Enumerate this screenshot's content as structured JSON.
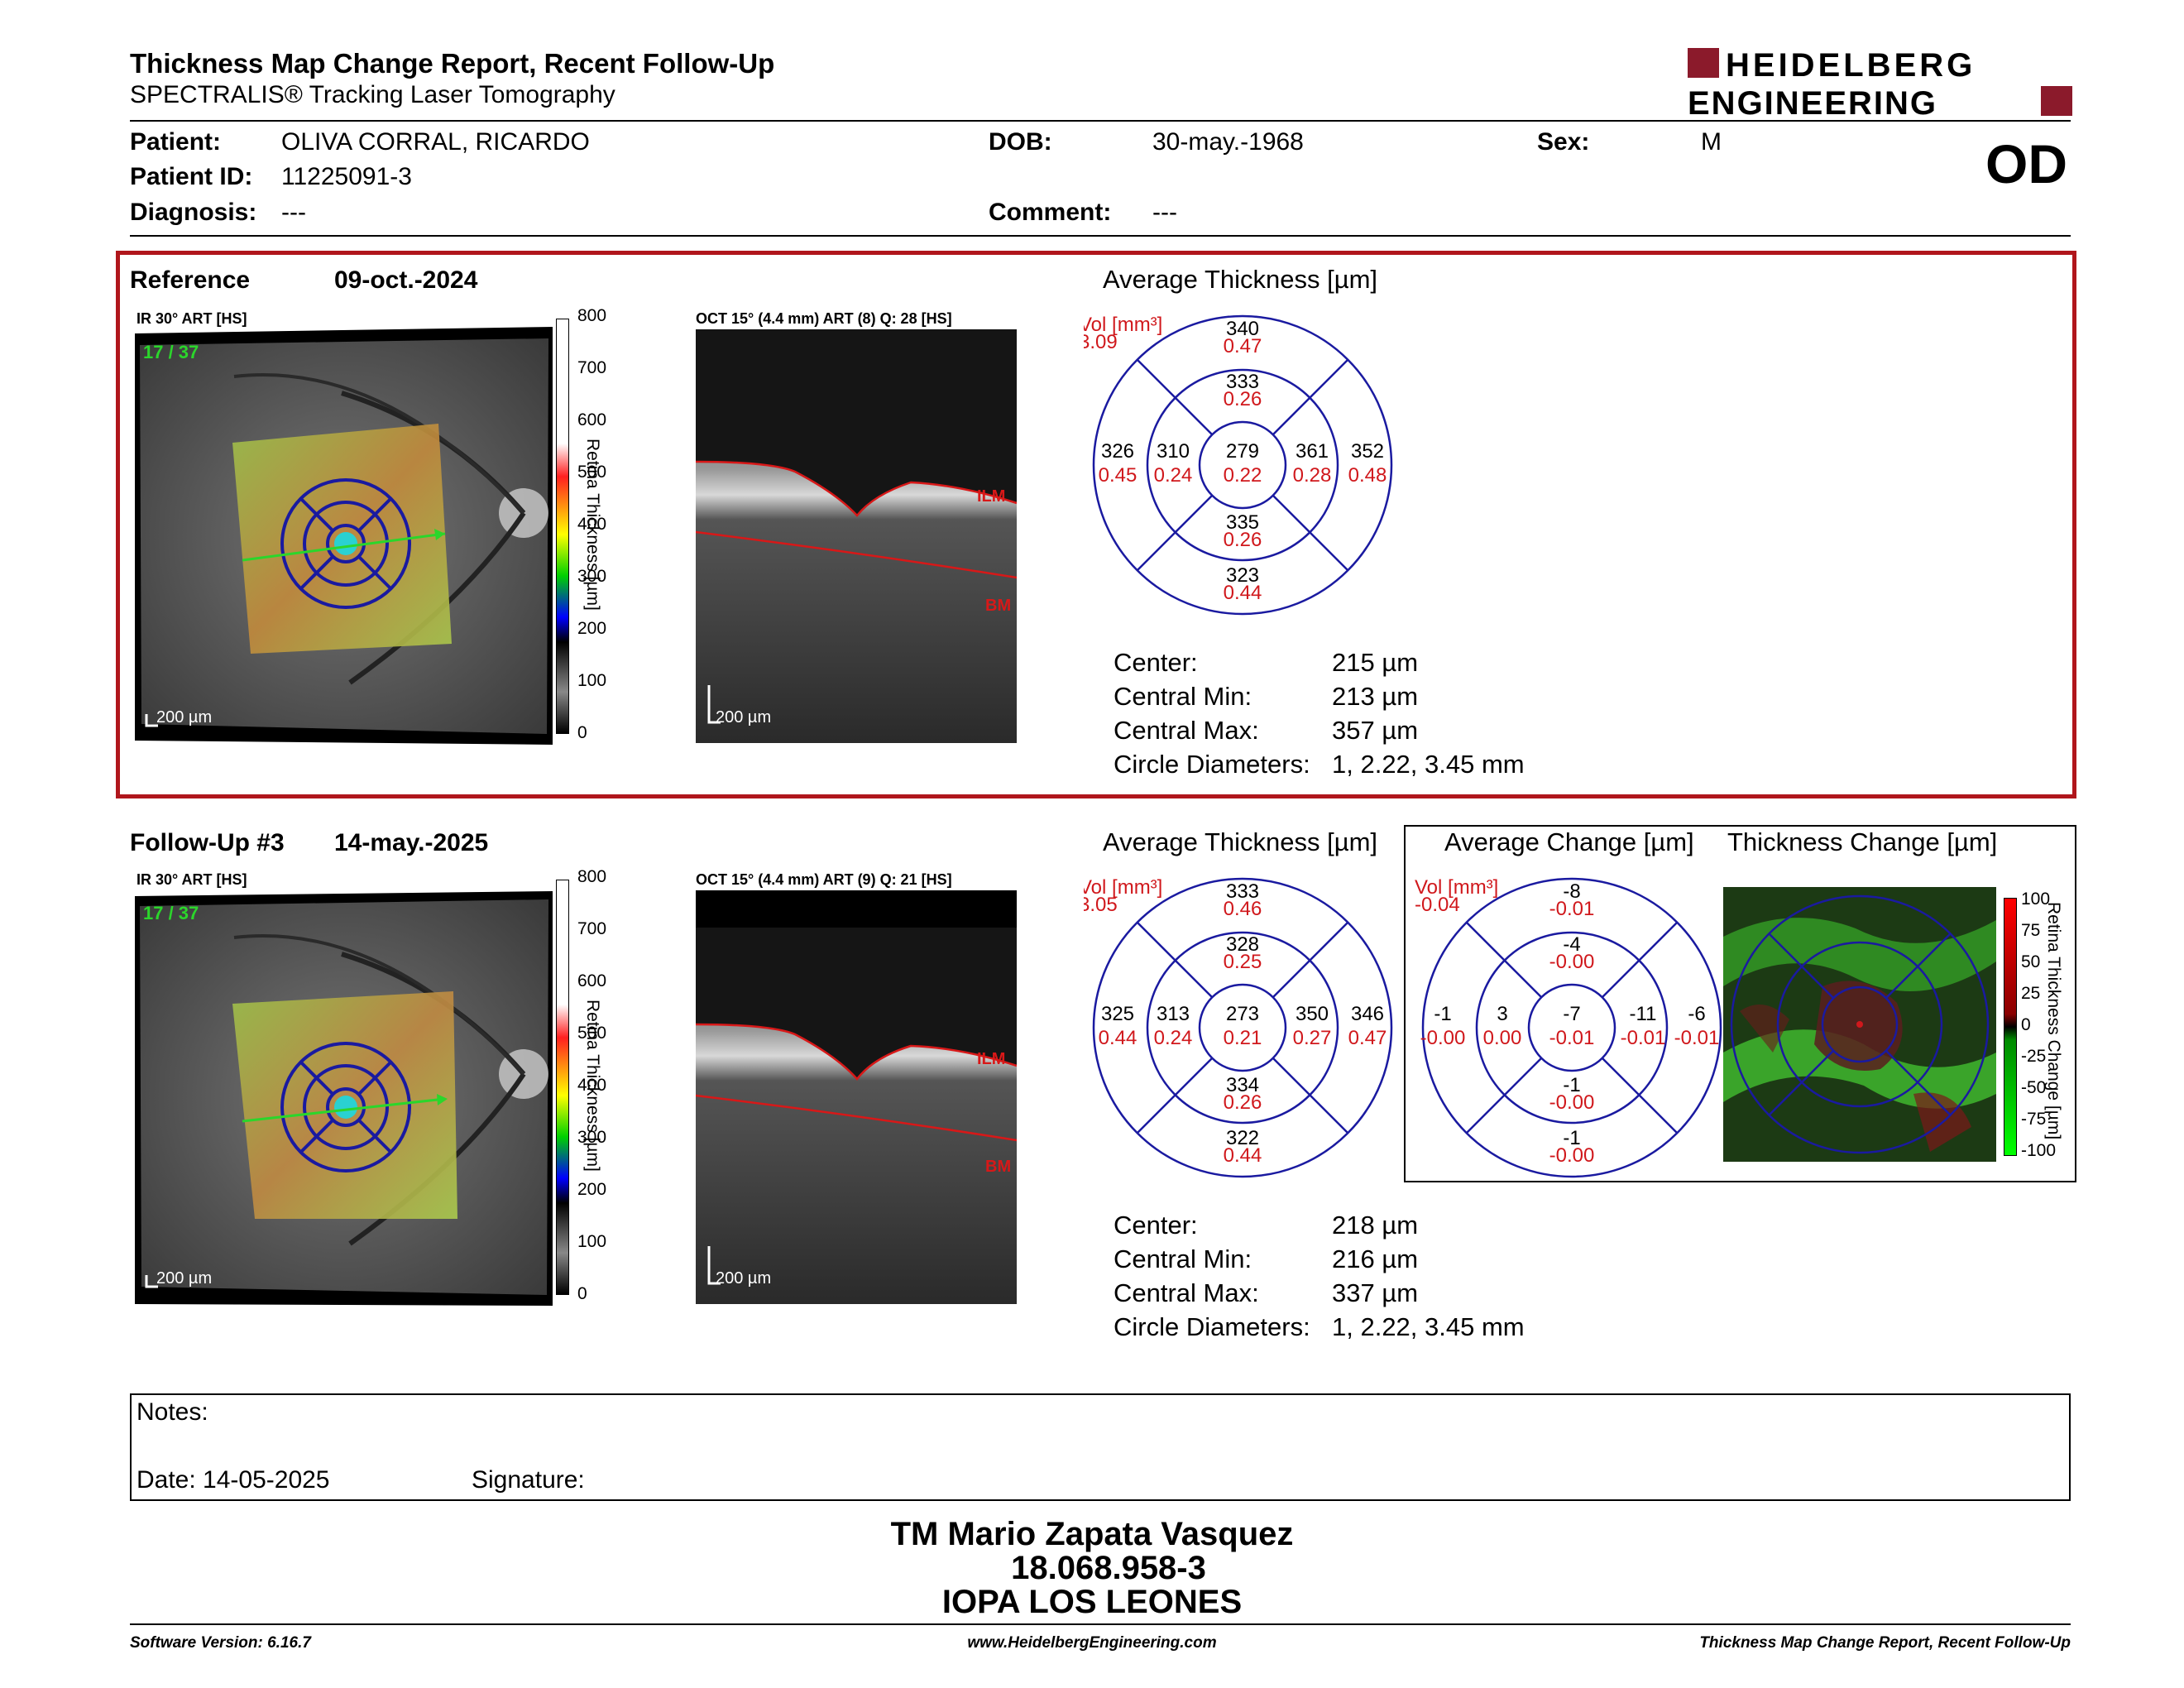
{
  "header": {
    "title": "Thickness Map Change Report, Recent Follow-Up",
    "subtitle": "SPECTRALIS® Tracking Laser Tomography",
    "logo_line1": "HEIDELBERG",
    "logo_line2": "ENGINEERING",
    "brand_color": "#8b1a2b"
  },
  "patient": {
    "patient_label": "Patient:",
    "patient_value": "OLIVA CORRAL, RICARDO",
    "id_label": "Patient ID:",
    "id_value": "11225091-3",
    "diagnosis_label": "Diagnosis:",
    "diagnosis_value": "---",
    "dob_label": "DOB:",
    "dob_value": "30-may.-1968",
    "comment_label": "Comment:",
    "comment_value": "---",
    "sex_label": "Sex:",
    "sex_value": "M",
    "eye": "OD"
  },
  "reference": {
    "label": "Reference",
    "date": "09-oct.-2024",
    "ir_title": "IR 30° ART [HS]",
    "ir_counter": "17 / 37",
    "oct_title": "OCT 15° (4.4 mm) ART (8) Q: 28 [HS]",
    "scale_label": "200 µm",
    "avg_title": "Average Thickness [µm]",
    "vol_label": "Vol [mm³]",
    "vol_value": "3.09",
    "grid": {
      "center": [
        "279",
        "0.22"
      ],
      "inner_top": [
        "333",
        "0.26"
      ],
      "inner_bottom": [
        "335",
        "0.26"
      ],
      "inner_left": [
        "310",
        "0.24"
      ],
      "inner_right": [
        "361",
        "0.28"
      ],
      "outer_top": [
        "340",
        "0.47"
      ],
      "outer_bottom": [
        "323",
        "0.44"
      ],
      "outer_left": [
        "326",
        "0.45"
      ],
      "outer_right": [
        "352",
        "0.48"
      ]
    },
    "stats": [
      {
        "label": "Center:",
        "value": "215 µm"
      },
      {
        "label": "Central Min:",
        "value": "213 µm"
      },
      {
        "label": "Central Max:",
        "value": "357 µm"
      },
      {
        "label": "Circle Diameters:",
        "value": "1, 2.22, 3.45 mm"
      }
    ]
  },
  "followup": {
    "label": "Follow-Up #3",
    "date": "14-may.-2025",
    "ir_title": "IR 30° ART [HS]",
    "ir_counter": "17 / 37",
    "oct_title": "OCT 15° (4.4 mm) ART (9) Q: 21 [HS]",
    "scale_label": "200 µm",
    "avg_title": "Average Thickness [µm]",
    "vol_label": "Vol [mm³]",
    "vol_value": "3.05",
    "grid": {
      "center": [
        "273",
        "0.21"
      ],
      "inner_top": [
        "328",
        "0.25"
      ],
      "inner_bottom": [
        "334",
        "0.26"
      ],
      "inner_left": [
        "313",
        "0.24"
      ],
      "inner_right": [
        "350",
        "0.27"
      ],
      "outer_top": [
        "333",
        "0.46"
      ],
      "outer_bottom": [
        "322",
        "0.44"
      ],
      "outer_left": [
        "325",
        "0.44"
      ],
      "outer_right": [
        "346",
        "0.47"
      ]
    },
    "stats": [
      {
        "label": "Center:",
        "value": "218 µm"
      },
      {
        "label": "Central Min:",
        "value": "216 µm"
      },
      {
        "label": "Central Max:",
        "value": "337 µm"
      },
      {
        "label": "Circle Diameters:",
        "value": "1, 2.22, 3.45 mm"
      }
    ],
    "change_title": "Average Change [µm]",
    "change_vol_label": "Vol [mm³]",
    "change_vol_value": "-0.04",
    "change_grid": {
      "center": [
        "-7",
        "-0.01"
      ],
      "inner_top": [
        "-4",
        "-0.00"
      ],
      "inner_bottom": [
        "-1",
        "-0.00"
      ],
      "inner_left": [
        "3",
        "0.00"
      ],
      "inner_right": [
        "-11",
        "-0.01"
      ],
      "outer_top": [
        "-8",
        "-0.01"
      ],
      "outer_bottom": [
        "-1",
        "-0.00"
      ],
      "outer_left": [
        "-1",
        "-0.00"
      ],
      "outer_right": [
        "-6",
        "-0.01"
      ]
    },
    "thickness_change_title": "Thickness Change [µm]"
  },
  "thickness_scale": {
    "ticks": [
      "800",
      "700",
      "600",
      "500",
      "400",
      "300",
      "200",
      "100",
      "0"
    ],
    "axis_label": "Retina Thickness [µm]"
  },
  "change_scale": {
    "ticks": [
      "100",
      "75",
      "50",
      "25",
      "0",
      "-25",
      "-50",
      "-75",
      "-100"
    ],
    "axis_label": "Retina Thickness Change [µm]"
  },
  "oct_labels": {
    "ilm": "ILM",
    "bm": "BM"
  },
  "notes": {
    "notes_label": "Notes:",
    "date_label": "Date: 14-05-2025",
    "signature_label": "Signature:"
  },
  "signature": {
    "name": "TM Mario Zapata Vasquez",
    "id": "18.068.958-3",
    "org": "IOPA LOS LEONES"
  },
  "footer": {
    "software": "Software Version: 6.16.7",
    "website": "www.HeidelbergEngineering.com",
    "report": "Thickness Map Change Report, Recent Follow-Up"
  },
  "colors": {
    "grid_blue": "#1a1aa0",
    "vol_red": "#d0181c",
    "panel_red": "#b0161c",
    "fovea_green": "#2bd62b"
  }
}
